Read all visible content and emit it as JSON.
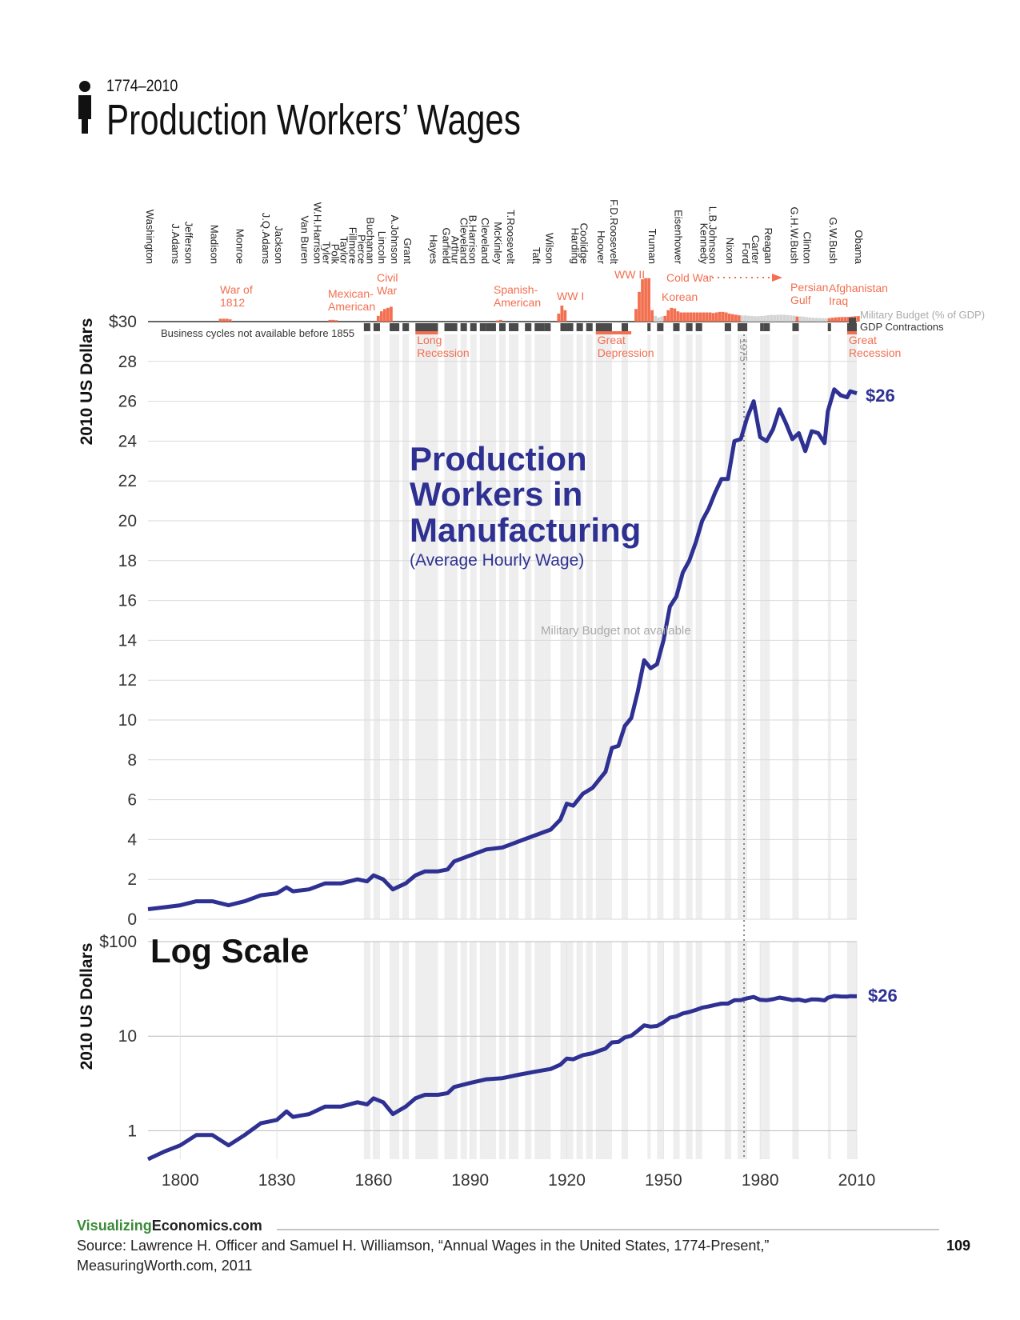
{
  "chart_data": {
    "type": "line",
    "subtitle": "1774–2010",
    "title": "Production Workers’ Wages",
    "y_label": "2010 US Dollars",
    "label_lines": [
      "Production",
      "Workers in",
      "Manufacturing"
    ],
    "label_sub": "(Average Hourly Wage)",
    "end_label": "$26",
    "note": "Military Budget not available",
    "xlim": [
      1790,
      2010
    ],
    "xticks": [
      1800,
      1830,
      1860,
      1890,
      1920,
      1950,
      1980,
      2010
    ],
    "ylim": [
      0,
      30
    ],
    "yticks": [
      0,
      2,
      4,
      6,
      8,
      10,
      12,
      14,
      16,
      18,
      20,
      22,
      24,
      26,
      28,
      {
        "value": 30,
        "label": "$30"
      }
    ],
    "grid": true,
    "x": [
      1790,
      1795,
      1800,
      1805,
      1810,
      1815,
      1820,
      1825,
      1830,
      1833,
      1835,
      1840,
      1845,
      1850,
      1855,
      1858,
      1860,
      1863,
      1866,
      1870,
      1873,
      1876,
      1880,
      1883,
      1885,
      1890,
      1895,
      1900,
      1905,
      1910,
      1915,
      1918,
      1920,
      1922,
      1925,
      1928,
      1930,
      1932,
      1934,
      1936,
      1938,
      1940,
      1942,
      1944,
      1946,
      1948,
      1950,
      1952,
      1954,
      1956,
      1958,
      1960,
      1962,
      1964,
      1966,
      1968,
      1970,
      1972,
      1974,
      1976,
      1978,
      1980,
      1982,
      1984,
      1986,
      1988,
      1990,
      1992,
      1994,
      1996,
      1998,
      2000,
      2001,
      2003,
      2005,
      2007,
      2008,
      2010
    ],
    "series": [
      {
        "color": "#2e3192",
        "values": [
          0.5,
          0.6,
          0.7,
          0.9,
          0.9,
          0.7,
          0.9,
          1.2,
          1.3,
          1.6,
          1.4,
          1.5,
          1.8,
          1.8,
          2.0,
          1.9,
          2.2,
          2.0,
          1.5,
          1.8,
          2.2,
          2.4,
          2.4,
          2.5,
          2.9,
          3.2,
          3.5,
          3.6,
          3.9,
          4.2,
          4.5,
          5.0,
          5.8,
          5.7,
          6.3,
          6.6,
          7.0,
          7.4,
          8.6,
          8.7,
          9.7,
          10.1,
          11.4,
          13.0,
          12.6,
          12.8,
          14.0,
          15.7,
          16.2,
          17.4,
          18.0,
          18.9,
          20.0,
          20.6,
          21.4,
          22.1,
          22.1,
          24.0,
          24.1,
          25.2,
          26.0,
          24.2,
          24.0,
          24.6,
          25.6,
          24.9,
          24.1,
          24.4,
          23.5,
          24.5,
          24.4,
          23.9,
          25.5,
          26.6,
          26.3,
          26.2,
          26.5,
          26.4
        ]
      }
    ],
    "log_panel": {
      "title": "Log Scale",
      "log_scale": true,
      "ylim": [
        0.5,
        100
      ],
      "yticks": [
        1,
        10,
        {
          "value": 100,
          "label": "$100"
        }
      ]
    },
    "marker_year": 1975,
    "presidents": [
      {
        "name": "Washington",
        "year": 1789
      },
      {
        "name": "J.Adams",
        "year": 1797
      },
      {
        "name": "Jefferson",
        "year": 1801
      },
      {
        "name": "Madison",
        "year": 1809
      },
      {
        "name": "Monroe",
        "year": 1817
      },
      {
        "name": "J.Q.Adams",
        "year": 1825
      },
      {
        "name": "Jackson",
        "year": 1829
      },
      {
        "name": "Van Buren",
        "year": 1837
      },
      {
        "name": "W.H.Harrison",
        "year": 1841
      },
      {
        "name": "Tyler",
        "year": 1841
      },
      {
        "name": "Polk",
        "year": 1845
      },
      {
        "name": "Taylor",
        "year": 1849
      },
      {
        "name": "Fillmore",
        "year": 1850
      },
      {
        "name": "Pierce",
        "year": 1853
      },
      {
        "name": "Buchanan",
        "year": 1857
      },
      {
        "name": "Lincoln",
        "year": 1861
      },
      {
        "name": "A.Johnson",
        "year": 1865
      },
      {
        "name": "Grant",
        "year": 1869
      },
      {
        "name": "Hayes",
        "year": 1877
      },
      {
        "name": "Garfield",
        "year": 1881
      },
      {
        "name": "Arthur",
        "year": 1881
      },
      {
        "name": "Cleveland",
        "year": 1885
      },
      {
        "name": "B.Harrison",
        "year": 1889
      },
      {
        "name": "Cleveland",
        "year": 1893
      },
      {
        "name": "McKinley",
        "year": 1897
      },
      {
        "name": "T.Roosevelt",
        "year": 1901
      },
      {
        "name": "Taft",
        "year": 1909
      },
      {
        "name": "Wilson",
        "year": 1913
      },
      {
        "name": "Harding",
        "year": 1921
      },
      {
        "name": "Coolidge",
        "year": 1923
      },
      {
        "name": "Hoover",
        "year": 1929
      },
      {
        "name": "F.D.Roosevelt",
        "year": 1933
      },
      {
        "name": "Truman",
        "year": 1945
      },
      {
        "name": "Eisenhower",
        "year": 1953
      },
      {
        "name": "Kennedy",
        "year": 1961
      },
      {
        "name": "L.B.Johnson",
        "year": 1963
      },
      {
        "name": "Nixon",
        "year": 1969
      },
      {
        "name": "Ford",
        "year": 1974
      },
      {
        "name": "Carter",
        "year": 1977
      },
      {
        "name": "Reagan",
        "year": 1981
      },
      {
        "name": "G.H.W.Bush",
        "year": 1989
      },
      {
        "name": "Clinton",
        "year": 1993
      },
      {
        "name": "G.W.Bush",
        "year": 2001
      },
      {
        "name": "Obama",
        "year": 2009
      }
    ],
    "wars": [
      {
        "lines": [
          "War of",
          "1812"
        ]
      },
      {
        "lines": [
          "Mexican-",
          "American"
        ]
      },
      {
        "lines": [
          "Civil",
          "War"
        ]
      },
      {
        "lines": [
          "Spanish-",
          "American"
        ]
      },
      {
        "lines": [
          "WW I"
        ]
      },
      {
        "lines": [
          "WW II"
        ]
      },
      {
        "lines": [
          "Korean"
        ]
      },
      {
        "lines": [
          "Cold War"
        ]
      },
      {
        "lines": [
          "Persian",
          "Gulf"
        ]
      },
      {
        "lines": [
          "Afghanistan",
          "Iraq"
        ]
      }
    ],
    "military_budget": {
      "label": "Military Budget (% of GDP)",
      "war": {
        "color": "#f26f50",
        "x": [
          1812,
          1813,
          1814,
          1815,
          1846,
          1847,
          1848,
          1861,
          1862,
          1863,
          1864,
          1865,
          1898,
          1899,
          1917,
          1918,
          1919,
          1941,
          1942,
          1943,
          1944,
          1945,
          1946,
          1950,
          1951,
          1952,
          1953,
          1954,
          1955,
          1956,
          1957,
          1958,
          1959,
          1960,
          1961,
          1962,
          1963,
          1964,
          1965,
          1966,
          1967,
          1968,
          1969,
          1970,
          1971,
          1972,
          1973,
          1991,
          2001,
          2002,
          2003,
          2004,
          2005,
          2006,
          2007,
          2008,
          2009,
          2010
        ],
        "values": [
          2.5,
          2.5,
          2.5,
          2,
          1.5,
          1.5,
          1.2,
          5,
          9,
          11,
          12,
          13,
          1,
          1.5,
          7,
          14,
          10,
          11,
          26,
          37,
          38,
          38,
          10,
          5,
          10,
          12,
          11.5,
          9,
          8,
          8,
          8,
          8,
          8,
          8,
          8,
          8,
          8,
          8,
          7.5,
          8,
          8.5,
          8.5,
          8,
          7,
          6.5,
          6,
          5.5,
          4.5,
          3,
          3.4,
          3.7,
          3.9,
          4,
          4,
          4.1,
          4.4,
          4.7,
          4.8
        ]
      },
      "other": {
        "color": "#d4d4d4",
        "x": [
          1947,
          1948,
          1949,
          1974,
          1975,
          1976,
          1977,
          1978,
          1979,
          1980,
          1981,
          1982,
          1983,
          1984,
          1985,
          1986,
          1987,
          1988,
          1989,
          1990,
          1992,
          1993,
          1994,
          1995,
          1996,
          1997,
          1998,
          1999,
          2000
        ],
        "values": [
          5,
          3.6,
          4.5,
          5.3,
          5.4,
          5.1,
          4.9,
          4.7,
          4.7,
          4.9,
          5.1,
          5.6,
          5.9,
          5.8,
          6,
          6.1,
          6,
          5.7,
          5.5,
          5.2,
          4.5,
          4.3,
          3.9,
          3.6,
          3.4,
          3.2,
          3.1,
          3,
          3
        ]
      }
    },
    "gdp_contractions": {
      "label": "GDP Contractions",
      "color": "#4a4a4a",
      "note": "Business cycles not available before 1855",
      "periods": [
        [
          1857,
          1858
        ],
        [
          1860,
          1861
        ],
        [
          1865,
          1867
        ],
        [
          1869,
          1870
        ],
        [
          1873,
          1879
        ],
        [
          1882,
          1885
        ],
        [
          1887,
          1888
        ],
        [
          1890,
          1891
        ],
        [
          1893,
          1894
        ],
        [
          1895,
          1897
        ],
        [
          1899,
          1900
        ],
        [
          1902,
          1904
        ],
        [
          1907,
          1908
        ],
        [
          1910,
          1912
        ],
        [
          1913,
          1914
        ],
        [
          1918,
          1919
        ],
        [
          1920,
          1921
        ],
        [
          1923,
          1924
        ],
        [
          1926,
          1927
        ],
        [
          1929,
          1933
        ],
        [
          1937,
          1938
        ],
        [
          1945,
          1945
        ],
        [
          1948,
          1949
        ],
        [
          1953,
          1954
        ],
        [
          1957,
          1958
        ],
        [
          1960,
          1961
        ],
        [
          1969,
          1970
        ],
        [
          1973,
          1975
        ],
        [
          1980,
          1980
        ],
        [
          1981,
          1982
        ],
        [
          1990,
          1991
        ],
        [
          2001,
          2001
        ],
        [
          2007,
          2009
        ]
      ]
    },
    "recessions": [
      {
        "lines": [
          "Long",
          "Recession"
        ],
        "start": 1873,
        "end": 1879
      },
      {
        "lines": [
          "Great",
          "Depression"
        ],
        "start": 1929,
        "end": 1939
      },
      {
        "lines": [
          "Great",
          "Recession"
        ],
        "start": 2007,
        "end": 2009
      }
    ],
    "footer": {
      "site_a": "Visualizing",
      "site_b": "Economics.com",
      "source_1": "Source: Lawrence H. Officer and Samuel H. Williamson, “Annual Wages in the United States, 1774-Present,”",
      "source_2": "MeasuringWorth.com, 2011",
      "page": "109"
    }
  }
}
